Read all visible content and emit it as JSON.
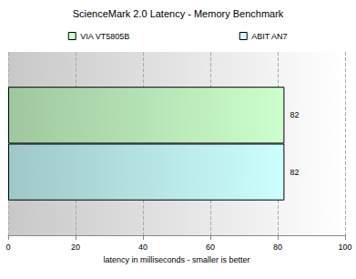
{
  "chart_data": {
    "type": "bar",
    "orientation": "horizontal",
    "title": "ScienceMark 2.0 Latency - Memory Benchmark",
    "x_label": "latency in milliseconds - smaller is better",
    "categories": [
      null
    ],
    "series": [
      {
        "name": "VIA VT5805B",
        "color": "#ccffcc",
        "values": [
          82
        ]
      },
      {
        "name": "ABIT AN7",
        "color": "#ccffff",
        "values": [
          82
        ]
      }
    ],
    "xlim": [
      0,
      100
    ],
    "xticks": [
      0,
      20,
      40,
      60,
      80,
      100
    ],
    "grid": true,
    "legend": "top",
    "data_labels": true,
    "tick_labels": "x"
  }
}
